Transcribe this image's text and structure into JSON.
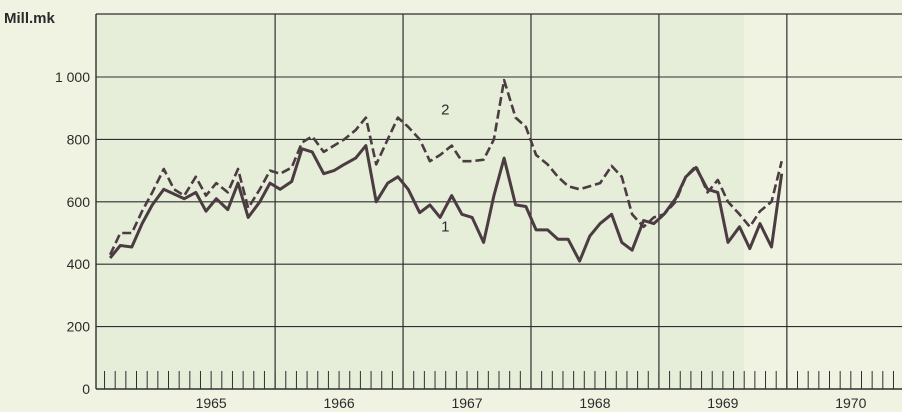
{
  "chart_data": {
    "type": "line",
    "y_unit_label": "Mill.mk",
    "ylim": [
      0,
      1100
    ],
    "y_ticks": [
      "0",
      "200",
      "400",
      "600",
      "800",
      "1 000"
    ],
    "y_tick_values": [
      0,
      200,
      400,
      600,
      800,
      1000
    ],
    "years": [
      "1965",
      "1966",
      "1967",
      "1968",
      "1969",
      "1970"
    ],
    "xlim": [
      1964.6,
      1970.9
    ],
    "grid": true,
    "colors": {
      "background": "#f1f3e2",
      "shade": "#e6edd9",
      "line": "#4a3c41",
      "grid": "#2f2f2f"
    },
    "series": [
      {
        "name": "1",
        "style": "solid",
        "points": [
          [
            1964.71,
            420
          ],
          [
            1964.79,
            460
          ],
          [
            1964.88,
            455
          ],
          [
            1964.96,
            530
          ],
          [
            1965.04,
            590
          ],
          [
            1965.13,
            640
          ],
          [
            1965.21,
            625
          ],
          [
            1965.29,
            610
          ],
          [
            1965.38,
            630
          ],
          [
            1965.46,
            570
          ],
          [
            1965.54,
            610
          ],
          [
            1965.63,
            575
          ],
          [
            1965.71,
            660
          ],
          [
            1965.79,
            550
          ],
          [
            1965.88,
            600
          ],
          [
            1965.96,
            660
          ],
          [
            1966.04,
            640
          ],
          [
            1966.13,
            665
          ],
          [
            1966.21,
            770
          ],
          [
            1966.29,
            760
          ],
          [
            1966.38,
            690
          ],
          [
            1966.46,
            700
          ],
          [
            1966.54,
            720
          ],
          [
            1966.63,
            740
          ],
          [
            1966.71,
            780
          ],
          [
            1966.79,
            600
          ],
          [
            1966.88,
            660
          ],
          [
            1966.96,
            680
          ],
          [
            1967.04,
            640
          ],
          [
            1967.13,
            565
          ],
          [
            1967.21,
            590
          ],
          [
            1967.29,
            550
          ],
          [
            1967.38,
            620
          ],
          [
            1967.46,
            560
          ],
          [
            1967.54,
            550
          ],
          [
            1967.63,
            470
          ],
          [
            1967.71,
            620
          ],
          [
            1967.79,
            740
          ],
          [
            1967.88,
            590
          ],
          [
            1967.96,
            585
          ],
          [
            1968.04,
            510
          ],
          [
            1968.13,
            510
          ],
          [
            1968.21,
            480
          ],
          [
            1968.29,
            480
          ],
          [
            1968.38,
            410
          ],
          [
            1968.46,
            490
          ],
          [
            1968.54,
            530
          ],
          [
            1968.63,
            560
          ],
          [
            1968.71,
            470
          ],
          [
            1968.79,
            445
          ],
          [
            1968.88,
            540
          ],
          [
            1968.96,
            530
          ],
          [
            1969.04,
            560
          ],
          [
            1969.13,
            610
          ],
          [
            1969.21,
            680
          ],
          [
            1969.29,
            710
          ],
          [
            1969.38,
            640
          ],
          [
            1969.46,
            630
          ],
          [
            1969.54,
            470
          ],
          [
            1969.63,
            520
          ],
          [
            1969.71,
            450
          ],
          [
            1969.79,
            530
          ],
          [
            1969.88,
            455
          ],
          [
            1969.96,
            690
          ]
        ]
      },
      {
        "name": "2",
        "style": "dashed",
        "points": [
          [
            1964.71,
            430
          ],
          [
            1964.79,
            500
          ],
          [
            1964.88,
            500
          ],
          [
            1964.96,
            570
          ],
          [
            1965.04,
            630
          ],
          [
            1965.13,
            705
          ],
          [
            1965.21,
            640
          ],
          [
            1965.29,
            620
          ],
          [
            1965.38,
            680
          ],
          [
            1965.46,
            620
          ],
          [
            1965.54,
            660
          ],
          [
            1965.63,
            630
          ],
          [
            1965.71,
            705
          ],
          [
            1965.79,
            580
          ],
          [
            1965.88,
            640
          ],
          [
            1965.96,
            700
          ],
          [
            1966.04,
            690
          ],
          [
            1966.13,
            710
          ],
          [
            1966.21,
            790
          ],
          [
            1966.29,
            810
          ],
          [
            1966.38,
            760
          ],
          [
            1966.46,
            780
          ],
          [
            1966.54,
            800
          ],
          [
            1966.63,
            830
          ],
          [
            1966.71,
            870
          ],
          [
            1966.79,
            720
          ],
          [
            1966.88,
            800
          ],
          [
            1966.96,
            870
          ],
          [
            1967.04,
            840
          ],
          [
            1967.13,
            800
          ],
          [
            1967.21,
            730
          ],
          [
            1967.29,
            750
          ],
          [
            1967.38,
            780
          ],
          [
            1967.46,
            730
          ],
          [
            1967.54,
            730
          ],
          [
            1967.63,
            735
          ],
          [
            1967.71,
            800
          ],
          [
            1967.79,
            990
          ],
          [
            1967.88,
            870
          ],
          [
            1967.96,
            840
          ],
          [
            1968.04,
            750
          ],
          [
            1968.13,
            720
          ],
          [
            1968.21,
            680
          ],
          [
            1968.29,
            650
          ],
          [
            1968.38,
            640
          ],
          [
            1968.46,
            650
          ],
          [
            1968.54,
            660
          ],
          [
            1968.63,
            715
          ],
          [
            1968.71,
            680
          ],
          [
            1968.79,
            560
          ],
          [
            1968.88,
            520
          ],
          [
            1968.96,
            550
          ],
          [
            1969.04,
            560
          ],
          [
            1969.13,
            600
          ],
          [
            1969.21,
            680
          ],
          [
            1969.29,
            715
          ],
          [
            1969.38,
            630
          ],
          [
            1969.46,
            670
          ],
          [
            1969.54,
            600
          ],
          [
            1969.63,
            560
          ],
          [
            1969.71,
            520
          ],
          [
            1969.79,
            570
          ],
          [
            1969.88,
            600
          ],
          [
            1969.96,
            730
          ]
        ]
      }
    ]
  }
}
